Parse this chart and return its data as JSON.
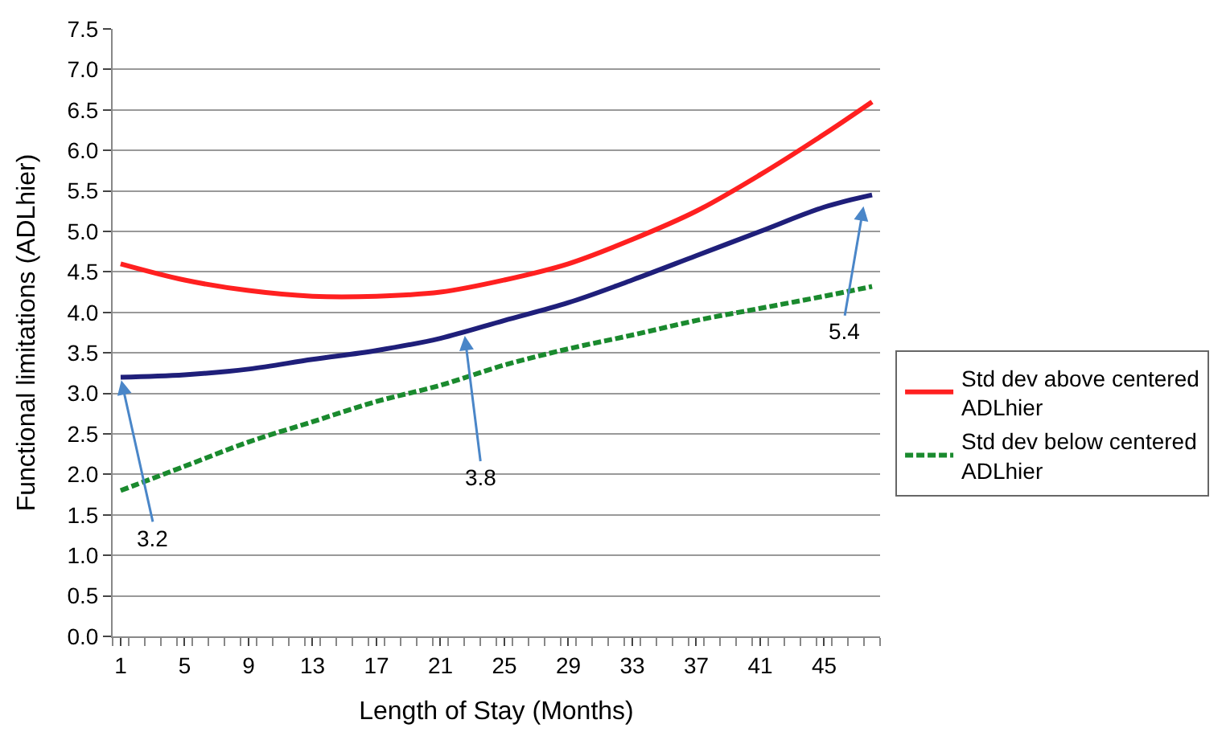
{
  "chart_data": {
    "type": "line",
    "xlabel": "Length of Stay (Months)",
    "ylabel": "Functional limitations (ADLhier)",
    "x": [
      1,
      5,
      9,
      13,
      17,
      21,
      25,
      29,
      33,
      37,
      41,
      45,
      48
    ],
    "series": [
      {
        "name": "Std dev above centered ADLhier",
        "color": "#ff2020",
        "line_style": "solid",
        "values": [
          4.6,
          4.4,
          4.27,
          4.2,
          4.2,
          4.25,
          4.4,
          4.6,
          4.9,
          5.25,
          5.7,
          6.2,
          6.6
        ]
      },
      {
        "color": "#1f1f7a",
        "line_style": "solid",
        "values": [
          3.2,
          3.23,
          3.3,
          3.42,
          3.53,
          3.68,
          3.9,
          4.12,
          4.4,
          4.7,
          5.0,
          5.3,
          5.45
        ]
      },
      {
        "name": "Std dev below centered ADLhier",
        "color": "#1a8a2e",
        "line_style": "dashed",
        "values": [
          1.8,
          2.1,
          2.4,
          2.65,
          2.9,
          3.1,
          3.35,
          3.55,
          3.72,
          3.9,
          4.05,
          4.2,
          4.32
        ]
      }
    ],
    "xlim": [
      0.5,
      48.5
    ],
    "xticks": [
      1,
      5,
      9,
      13,
      17,
      21,
      25,
      29,
      33,
      37,
      41,
      45
    ],
    "ylim": [
      0,
      7.5
    ],
    "yticks": [
      {
        "value": 0,
        "label": "0.0"
      },
      {
        "value": 0.5,
        "label": "0.5"
      },
      {
        "value": 1.0,
        "label": "1.0"
      },
      {
        "value": 1.5,
        "label": "1.5"
      },
      {
        "value": 2.0,
        "label": "2.0"
      },
      {
        "value": 2.5,
        "label": "2.5"
      },
      {
        "value": 3.0,
        "label": "3.0"
      },
      {
        "value": 3.5,
        "label": "3.5"
      },
      {
        "value": 4.0,
        "label": "4.0"
      },
      {
        "value": 4.5,
        "label": "4.5"
      },
      {
        "value": 5.0,
        "label": "5.0"
      },
      {
        "value": 5.5,
        "label": "5.5"
      },
      {
        "value": 6.0,
        "label": "6.0"
      },
      {
        "value": 6.5,
        "label": "6.5"
      },
      {
        "value": 7.0,
        "label": "7.0"
      },
      {
        "value": 7.5,
        "label": "7.5"
      }
    ],
    "annotations": [
      {
        "text": "3.2",
        "x": 1,
        "y": 3.2
      },
      {
        "text": "3.8",
        "x": 22.5,
        "y": 3.75
      },
      {
        "text": "5.4",
        "x": 47.5,
        "y": 5.35
      }
    ],
    "grid": "y",
    "legend": "right",
    "marker": "none"
  }
}
